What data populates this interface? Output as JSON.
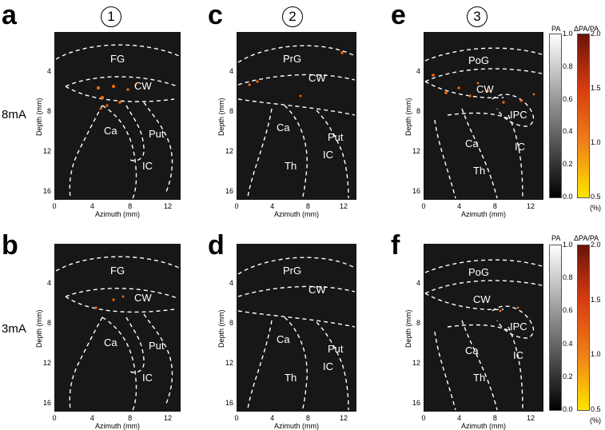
{
  "letters": [
    "a",
    "b",
    "c",
    "d",
    "e",
    "f"
  ],
  "rows": [
    "8mA",
    "3mA"
  ],
  "columns": [
    "1",
    "2",
    "3"
  ],
  "axes": {
    "xlabel": "Azimuth (mm)",
    "ylabel": "Depth (mm)",
    "xticks": [
      "0",
      "4",
      "8",
      "12"
    ],
    "yticks": [
      "4",
      "8",
      "12",
      "16"
    ]
  },
  "panels": [
    {
      "id": "a",
      "regions": [
        "FG",
        "CW",
        "Ca",
        "Put",
        "IC"
      ]
    },
    {
      "id": "c",
      "regions": [
        "PrG",
        "CW",
        "Ca",
        "Put",
        "IC",
        "Th"
      ]
    },
    {
      "id": "e",
      "regions": [
        "PoG",
        "CW",
        "IPC",
        "Ca",
        "IC",
        "Th"
      ]
    },
    {
      "id": "b",
      "regions": [
        "FG",
        "CW",
        "Ca",
        "Put",
        "IC"
      ]
    },
    {
      "id": "d",
      "regions": [
        "PrG",
        "CW",
        "Ca",
        "Put",
        "IC",
        "Th"
      ]
    },
    {
      "id": "f",
      "regions": [
        "PoG",
        "CW",
        "IPC",
        "Ca",
        "IC",
        "Th"
      ]
    }
  ],
  "colorbars": {
    "pa": {
      "title": "PA",
      "ticks": [
        "1.0",
        "0.8",
        "0.6",
        "0.4",
        "0.2",
        "0.0"
      ]
    },
    "dpa": {
      "title": "ΔPA/PA",
      "ticks": [
        "2.0",
        "1.5",
        "1.0",
        "0.5"
      ],
      "unit": "(%)"
    }
  },
  "colors": {
    "background": "#171717",
    "boundary": "#ffffff",
    "hot": "#ff6a00"
  }
}
